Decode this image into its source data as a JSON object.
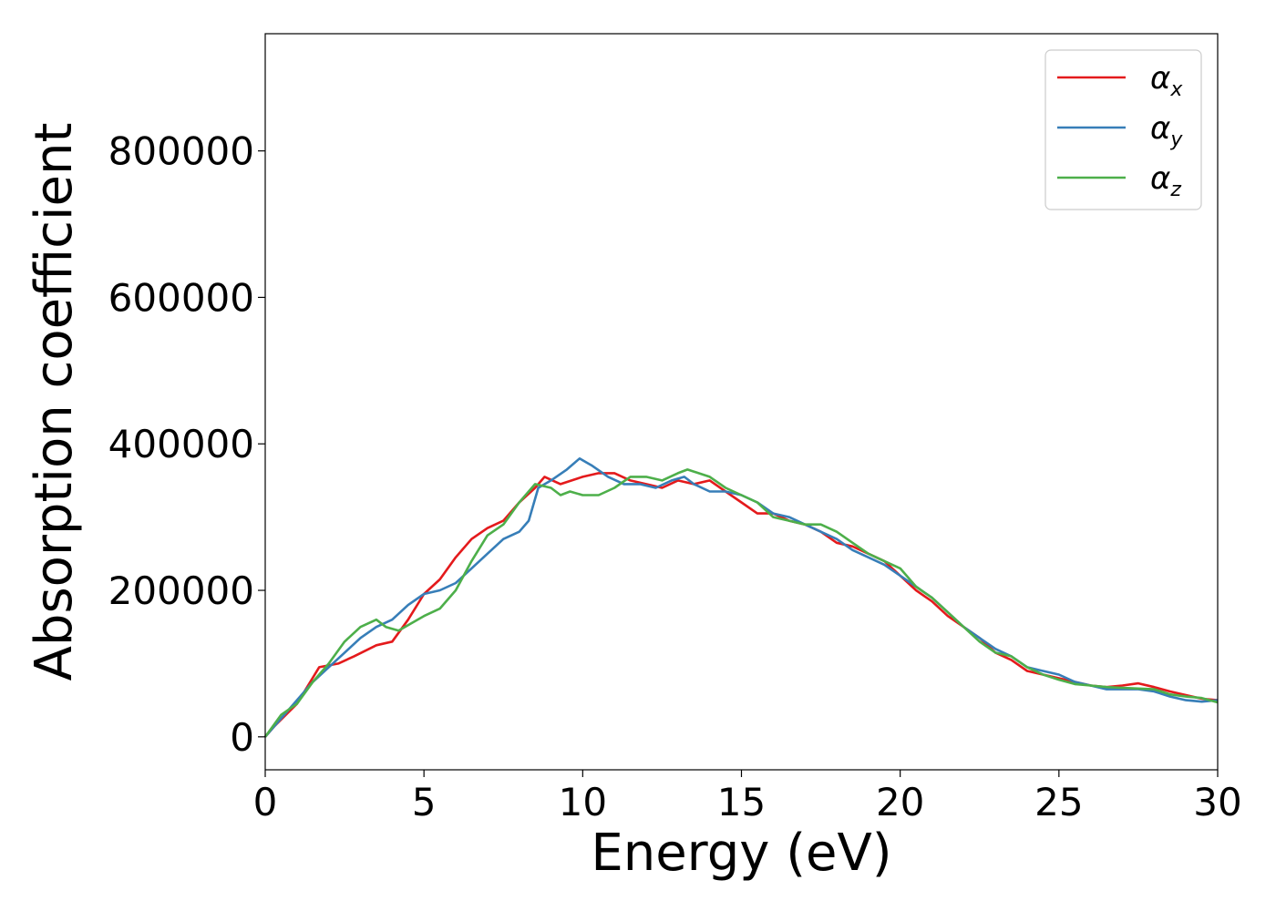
{
  "chart_data": {
    "type": "line",
    "title": "",
    "xlabel": "Energy (eV)",
    "ylabel": "Absorption coefficient",
    "xlim": [
      0,
      30
    ],
    "ylim": [
      -45000,
      960000
    ],
    "xticks": [
      0,
      5,
      10,
      15,
      20,
      25,
      30
    ],
    "yticks": [
      0,
      200000,
      400000,
      600000,
      800000
    ],
    "grid": false,
    "legend_position": "top-right",
    "series": [
      {
        "name": "α",
        "subscript": "x",
        "color": "#e41a1c",
        "points": [
          [
            0,
            0
          ],
          [
            0.3,
            15000
          ],
          [
            1.0,
            45000
          ],
          [
            1.7,
            95000
          ],
          [
            2.3,
            100000
          ],
          [
            2.8,
            110000
          ],
          [
            3.5,
            125000
          ],
          [
            4.0,
            130000
          ],
          [
            4.5,
            160000
          ],
          [
            5.0,
            195000
          ],
          [
            5.5,
            215000
          ],
          [
            6.0,
            245000
          ],
          [
            6.5,
            270000
          ],
          [
            7.0,
            285000
          ],
          [
            7.5,
            295000
          ],
          [
            8.0,
            320000
          ],
          [
            8.5,
            340000
          ],
          [
            8.8,
            355000
          ],
          [
            9.3,
            345000
          ],
          [
            10.0,
            355000
          ],
          [
            10.5,
            360000
          ],
          [
            11.0,
            360000
          ],
          [
            11.5,
            350000
          ],
          [
            12.0,
            345000
          ],
          [
            12.5,
            340000
          ],
          [
            13.0,
            350000
          ],
          [
            13.5,
            345000
          ],
          [
            14.0,
            350000
          ],
          [
            14.5,
            335000
          ],
          [
            15.0,
            320000
          ],
          [
            15.5,
            305000
          ],
          [
            16.0,
            305000
          ],
          [
            16.5,
            295000
          ],
          [
            17.0,
            290000
          ],
          [
            17.5,
            280000
          ],
          [
            18.0,
            265000
          ],
          [
            18.5,
            260000
          ],
          [
            19.0,
            250000
          ],
          [
            19.5,
            240000
          ],
          [
            20.0,
            220000
          ],
          [
            20.5,
            200000
          ],
          [
            21.0,
            185000
          ],
          [
            21.5,
            165000
          ],
          [
            22.0,
            150000
          ],
          [
            22.5,
            135000
          ],
          [
            23.0,
            115000
          ],
          [
            23.5,
            105000
          ],
          [
            24.0,
            90000
          ],
          [
            24.5,
            85000
          ],
          [
            25.0,
            80000
          ],
          [
            25.5,
            75000
          ],
          [
            26.0,
            70000
          ],
          [
            26.5,
            68000
          ],
          [
            27.0,
            70000
          ],
          [
            27.5,
            73000
          ],
          [
            28.0,
            68000
          ],
          [
            28.5,
            62000
          ],
          [
            29.0,
            57000
          ],
          [
            29.5,
            52000
          ],
          [
            30.0,
            50000
          ]
        ]
      },
      {
        "name": "α",
        "subscript": "y",
        "color": "#377eb8",
        "points": [
          [
            0,
            0
          ],
          [
            0.5,
            25000
          ],
          [
            1.0,
            50000
          ],
          [
            1.5,
            75000
          ],
          [
            2.0,
            95000
          ],
          [
            2.5,
            115000
          ],
          [
            3.0,
            135000
          ],
          [
            3.5,
            150000
          ],
          [
            4.0,
            160000
          ],
          [
            4.5,
            180000
          ],
          [
            5.0,
            195000
          ],
          [
            5.5,
            200000
          ],
          [
            6.0,
            210000
          ],
          [
            6.5,
            230000
          ],
          [
            7.0,
            250000
          ],
          [
            7.5,
            270000
          ],
          [
            8.0,
            280000
          ],
          [
            8.3,
            295000
          ],
          [
            8.6,
            340000
          ],
          [
            9.0,
            350000
          ],
          [
            9.5,
            365000
          ],
          [
            9.9,
            380000
          ],
          [
            10.3,
            370000
          ],
          [
            10.8,
            355000
          ],
          [
            11.3,
            345000
          ],
          [
            11.8,
            345000
          ],
          [
            12.3,
            340000
          ],
          [
            12.8,
            350000
          ],
          [
            13.2,
            355000
          ],
          [
            13.5,
            345000
          ],
          [
            14.0,
            335000
          ],
          [
            14.5,
            335000
          ],
          [
            15.0,
            330000
          ],
          [
            15.5,
            320000
          ],
          [
            16.0,
            305000
          ],
          [
            16.5,
            300000
          ],
          [
            17.0,
            290000
          ],
          [
            17.5,
            280000
          ],
          [
            18.0,
            270000
          ],
          [
            18.5,
            255000
          ],
          [
            19.0,
            245000
          ],
          [
            19.5,
            235000
          ],
          [
            20.0,
            220000
          ],
          [
            20.5,
            205000
          ],
          [
            21.0,
            190000
          ],
          [
            21.5,
            170000
          ],
          [
            22.0,
            150000
          ],
          [
            22.5,
            135000
          ],
          [
            23.0,
            120000
          ],
          [
            23.5,
            110000
          ],
          [
            24.0,
            95000
          ],
          [
            24.5,
            90000
          ],
          [
            25.0,
            85000
          ],
          [
            25.5,
            75000
          ],
          [
            26.0,
            70000
          ],
          [
            26.5,
            65000
          ],
          [
            27.0,
            65000
          ],
          [
            27.5,
            65000
          ],
          [
            28.0,
            62000
          ],
          [
            28.5,
            55000
          ],
          [
            29.0,
            50000
          ],
          [
            29.5,
            48000
          ],
          [
            30.0,
            50000
          ]
        ]
      },
      {
        "name": "α",
        "subscript": "z",
        "color": "#4daf4a",
        "points": [
          [
            0,
            0
          ],
          [
            0.5,
            30000
          ],
          [
            1.0,
            45000
          ],
          [
            1.5,
            75000
          ],
          [
            2.0,
            100000
          ],
          [
            2.5,
            130000
          ],
          [
            3.0,
            150000
          ],
          [
            3.5,
            160000
          ],
          [
            3.8,
            150000
          ],
          [
            4.2,
            145000
          ],
          [
            4.6,
            155000
          ],
          [
            5.0,
            165000
          ],
          [
            5.5,
            175000
          ],
          [
            6.0,
            200000
          ],
          [
            6.5,
            240000
          ],
          [
            7.0,
            275000
          ],
          [
            7.5,
            290000
          ],
          [
            8.0,
            320000
          ],
          [
            8.5,
            345000
          ],
          [
            9.0,
            340000
          ],
          [
            9.3,
            330000
          ],
          [
            9.6,
            335000
          ],
          [
            10.0,
            330000
          ],
          [
            10.5,
            330000
          ],
          [
            11.0,
            340000
          ],
          [
            11.5,
            355000
          ],
          [
            12.0,
            355000
          ],
          [
            12.5,
            350000
          ],
          [
            13.0,
            360000
          ],
          [
            13.3,
            365000
          ],
          [
            14.0,
            355000
          ],
          [
            14.5,
            340000
          ],
          [
            15.0,
            330000
          ],
          [
            15.5,
            320000
          ],
          [
            16.0,
            300000
          ],
          [
            16.5,
            295000
          ],
          [
            17.0,
            290000
          ],
          [
            17.5,
            290000
          ],
          [
            18.0,
            280000
          ],
          [
            18.5,
            265000
          ],
          [
            19.0,
            250000
          ],
          [
            19.5,
            240000
          ],
          [
            20.0,
            230000
          ],
          [
            20.5,
            205000
          ],
          [
            21.0,
            190000
          ],
          [
            21.5,
            170000
          ],
          [
            22.0,
            150000
          ],
          [
            22.5,
            130000
          ],
          [
            23.0,
            115000
          ],
          [
            23.5,
            110000
          ],
          [
            24.0,
            95000
          ],
          [
            24.5,
            85000
          ],
          [
            25.0,
            78000
          ],
          [
            25.5,
            72000
          ],
          [
            26.0,
            70000
          ],
          [
            26.5,
            68000
          ],
          [
            27.0,
            67000
          ],
          [
            27.5,
            66000
          ],
          [
            28.0,
            65000
          ],
          [
            28.5,
            58000
          ],
          [
            29.0,
            55000
          ],
          [
            29.5,
            53000
          ],
          [
            30.0,
            47000
          ]
        ]
      }
    ]
  }
}
